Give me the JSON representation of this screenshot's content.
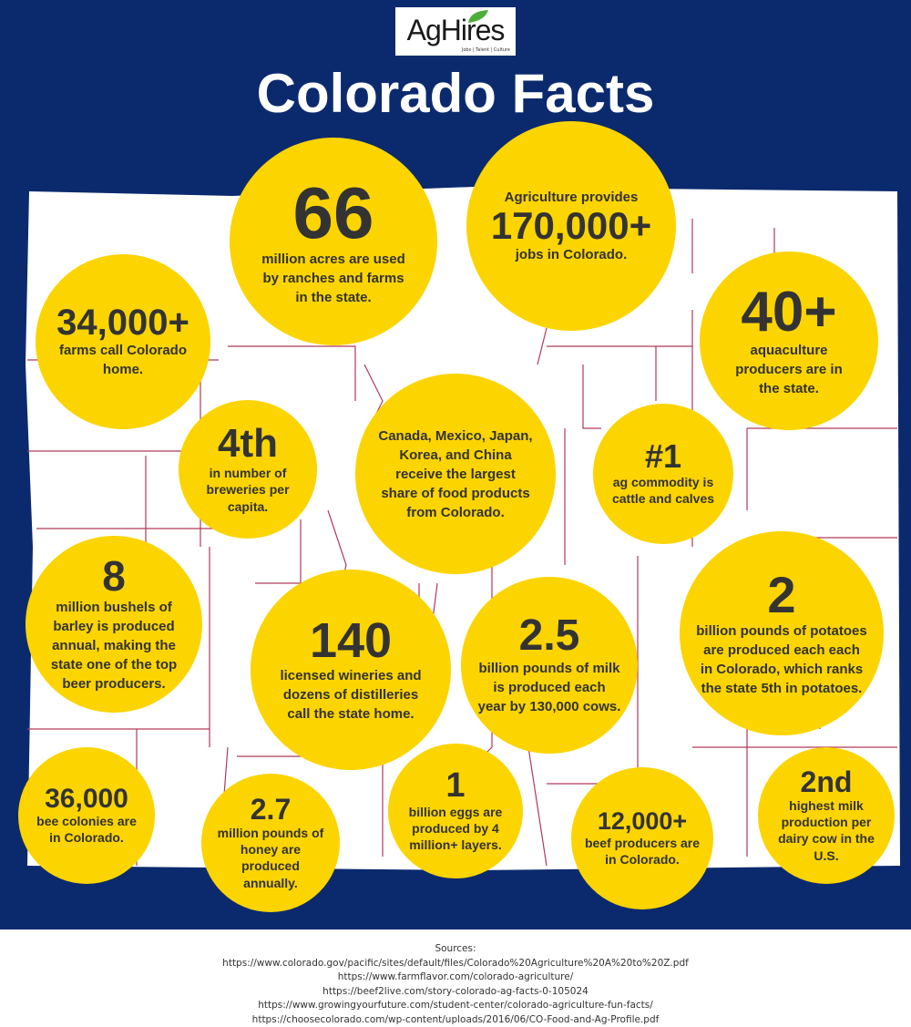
{
  "logo": {
    "text": "AgHires",
    "tagline": "Jobs | Talent | Culture"
  },
  "title": "Colorado Facts",
  "colors": {
    "background": "#0b2a6e",
    "circle": "#fcd400",
    "map": "#ffffff",
    "county_lines": "#b03a5b"
  },
  "facts": [
    {
      "pre": "",
      "big": "66",
      "text": "million acres are used by ranches and farms in the state."
    },
    {
      "pre": "Agriculture provides",
      "big": "170,000+",
      "text": "jobs in Colorado."
    },
    {
      "pre": "",
      "big": "34,000+",
      "text": "farms call Colorado home."
    },
    {
      "pre": "",
      "big": "40+",
      "text": "aquaculture producers are in the state."
    },
    {
      "pre": "",
      "big": "4th",
      "text": "in number of breweries per capita."
    },
    {
      "pre": "",
      "big": "",
      "text": "Canada, Mexico, Japan, Korea, and China receive the largest share of food products from Colorado."
    },
    {
      "pre": "",
      "big": "#1",
      "text": "ag commodity is cattle and calves"
    },
    {
      "pre": "",
      "big": "8",
      "text": "million bushels of barley is produced annual, making the state one of the top beer producers."
    },
    {
      "pre": "",
      "big": "140",
      "text": "licensed wineries and dozens of distilleries call the state home."
    },
    {
      "pre": "",
      "big": "2.5",
      "text": "billion pounds of milk is produced each year by 130,000 cows."
    },
    {
      "pre": "",
      "big": "2",
      "text": "billion pounds of potatoes are produced each each in Colorado, which ranks the state 5th in potatoes."
    },
    {
      "pre": "",
      "big": "36,000",
      "text": "bee colonies are in Colorado."
    },
    {
      "pre": "",
      "big": "2.7",
      "text": "million pounds of honey are produced annually."
    },
    {
      "pre": "",
      "big": "1",
      "text": "billion eggs are produced by 4 million+ layers."
    },
    {
      "pre": "",
      "big": "12,000+",
      "text": "beef producers are in Colorado."
    },
    {
      "pre": "",
      "big": "2nd",
      "text": "highest milk production per dairy cow in the U.S."
    }
  ],
  "sources": {
    "label": "Sources:",
    "urls": [
      "https://www.colorado.gov/pacific/sites/default/files/Colorado%20Agriculture%20A%20to%20Z.pdf",
      "https://www.farmflavor.com/colorado-agriculture/",
      "https://beef2live.com/story-colorado-ag-facts-0-105024",
      "https://www.growingyourfuture.com/student-center/colorado-agriculture-fun-facts/",
      "https://choosecolorado.com/wp-content/uploads/2016/06/CO-Food-and-Ag-Profile.pdf"
    ]
  }
}
